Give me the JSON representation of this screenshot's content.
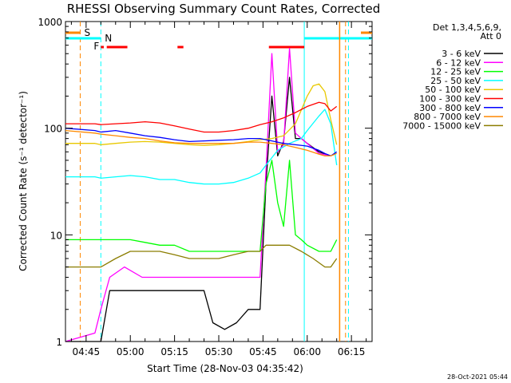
{
  "chart_data": {
    "type": "line",
    "title": "RHESSI Observing Summary Count Rates, Corrected",
    "xlabel": "Start Time (28-Nov-03 04:35:42)",
    "ylabel": "Corrected Count Rate (s⁻¹ detector⁻¹)",
    "yscale": "log",
    "ylim": [
      1,
      1000
    ],
    "xlim_min": [
      38,
      142
    ],
    "x_ticks": [
      {
        "t": 45,
        "label": "04:45"
      },
      {
        "t": 60,
        "label": "05:00"
      },
      {
        "t": 75,
        "label": "05:15"
      },
      {
        "t": 90,
        "label": "05:30"
      },
      {
        "t": 105,
        "label": "05:45"
      },
      {
        "t": 120,
        "label": "06:00"
      },
      {
        "t": 135,
        "label": "06:15"
      }
    ],
    "y_ticks": [
      {
        "v": 1,
        "label": "1"
      },
      {
        "v": 10,
        "label": "10"
      },
      {
        "v": 100,
        "label": "100"
      },
      {
        "v": 1000,
        "label": "1000"
      }
    ],
    "legend_header": [
      "Det 1,3,4,5,6,9,",
      "Att 0"
    ],
    "series": [
      {
        "name": "3 - 6 keV",
        "color": "#000000",
        "t": [
          38,
          48,
          50,
          53,
          58,
          64,
          70,
          75,
          80,
          85,
          88,
          92,
          96,
          100,
          104,
          106,
          108,
          110,
          112,
          114,
          116,
          118,
          120,
          124,
          128
        ],
        "values": [
          1,
          1,
          1,
          3,
          3,
          3,
          3,
          3,
          3,
          3,
          1.5,
          1.3,
          1.5,
          2,
          2,
          30,
          200,
          55,
          75,
          300,
          80,
          80,
          72,
          60,
          55
        ]
      },
      {
        "name": "6 - 12 keV",
        "color": "#ff00ff",
        "t": [
          38,
          48,
          50,
          53,
          58,
          64,
          70,
          75,
          80,
          85,
          90,
          95,
          100,
          104,
          106,
          108,
          110,
          112,
          114,
          116,
          118,
          120,
          124,
          128
        ],
        "values": [
          1,
          1.2,
          2,
          4,
          5,
          4,
          4,
          4,
          4,
          4,
          4,
          4,
          4,
          4,
          40,
          500,
          60,
          70,
          560,
          90,
          80,
          72,
          58,
          55
        ]
      },
      {
        "name": "12 - 25 keV",
        "color": "#00ff00",
        "t": [
          38,
          48,
          50,
          55,
          60,
          65,
          70,
          75,
          80,
          85,
          90,
          95,
          100,
          104,
          106,
          108,
          110,
          112,
          114,
          116,
          118,
          120,
          124,
          128,
          130
        ],
        "values": [
          9,
          9,
          9,
          9,
          9,
          8.5,
          8,
          8,
          7,
          7,
          7,
          7,
          7,
          7,
          30,
          50,
          20,
          12,
          50,
          10,
          9,
          8,
          7,
          7,
          9
        ]
      },
      {
        "name": "25 - 50 keV",
        "color": "#00ffff",
        "t": [
          38,
          48,
          50,
          55,
          60,
          65,
          70,
          75,
          80,
          85,
          90,
          95,
          100,
          104,
          106,
          110,
          114,
          118,
          120,
          124,
          126,
          128,
          130
        ],
        "values": [
          35,
          35,
          34,
          35,
          36,
          35,
          33,
          33,
          31,
          30,
          30,
          31,
          34,
          38,
          45,
          62,
          72,
          80,
          95,
          130,
          150,
          110,
          45
        ]
      },
      {
        "name": "50 - 100 keV",
        "color": "#e8c800",
        "t": [
          38,
          48,
          50,
          55,
          60,
          65,
          70,
          75,
          80,
          85,
          90,
          95,
          100,
          104,
          108,
          112,
          116,
          120,
          122,
          124,
          126,
          128,
          130
        ],
        "values": [
          72,
          72,
          70,
          72,
          74,
          75,
          74,
          72,
          70,
          69,
          70,
          72,
          75,
          78,
          80,
          85,
          110,
          200,
          250,
          260,
          220,
          120,
          70
        ]
      },
      {
        "name": "100 - 300 keV",
        "color": "#ff0000",
        "t": [
          38,
          48,
          50,
          55,
          60,
          65,
          70,
          75,
          80,
          85,
          90,
          95,
          100,
          104,
          108,
          112,
          116,
          120,
          124,
          126,
          128,
          130
        ],
        "values": [
          110,
          110,
          108,
          110,
          112,
          115,
          112,
          105,
          98,
          92,
          92,
          95,
          100,
          108,
          115,
          125,
          140,
          160,
          175,
          170,
          145,
          160
        ]
      },
      {
        "name": "300 - 800 keV",
        "color": "#0000ff",
        "t": [
          38,
          48,
          50,
          55,
          60,
          65,
          70,
          75,
          80,
          85,
          90,
          95,
          100,
          104,
          108,
          112,
          116,
          120,
          124,
          126,
          128,
          130
        ],
        "values": [
          100,
          95,
          92,
          95,
          90,
          85,
          82,
          78,
          75,
          76,
          77,
          78,
          80,
          80,
          76,
          72,
          70,
          68,
          62,
          58,
          55,
          60
        ]
      },
      {
        "name": "800 - 7000 keV",
        "color": "#ff8800",
        "t": [
          38,
          48,
          50,
          55,
          60,
          65,
          70,
          75,
          80,
          85,
          90,
          95,
          100,
          104,
          108,
          112,
          116,
          120,
          124,
          126,
          128,
          130
        ],
        "values": [
          95,
          90,
          88,
          85,
          82,
          80,
          76,
          73,
          72,
          72,
          72,
          72,
          74,
          74,
          72,
          70,
          66,
          62,
          57,
          55,
          55,
          58
        ]
      },
      {
        "name": "7000 - 15000 keV",
        "color": "#8b7d00",
        "t": [
          38,
          48,
          50,
          55,
          60,
          65,
          70,
          75,
          80,
          85,
          90,
          95,
          100,
          104,
          106,
          110,
          114,
          118,
          122,
          126,
          128,
          130
        ],
        "values": [
          5,
          5,
          5,
          6,
          7,
          7,
          7,
          6.5,
          6,
          6,
          6,
          6.5,
          7,
          7,
          8,
          8,
          8,
          7,
          6,
          5,
          5,
          6
        ]
      }
    ],
    "annotations": {
      "saa": {
        "label": "S",
        "color": "#ff8800",
        "t_start": 38,
        "t_end": 43,
        "boundary_t": [
          43,
          133
        ]
      },
      "night": {
        "label": "N",
        "color": "#00ffff",
        "t_start": 38,
        "t_end": 50,
        "boundary_t": [
          50,
          119,
          134
        ],
        "t_start2": 119,
        "t_end2": 142
      },
      "flare": {
        "label": "F",
        "color": "#ff0000",
        "segments": [
          [
            50,
            51
          ],
          [
            52,
            59
          ],
          [
            76,
            78
          ],
          [
            107,
            119
          ]
        ]
      },
      "attenuator_line": {
        "color": "#ff8800",
        "t": 131
      }
    }
  },
  "timestamp": "28-Oct-2021 05:44"
}
